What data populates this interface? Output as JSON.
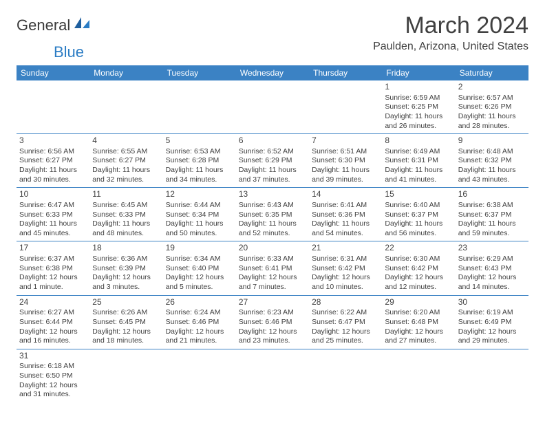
{
  "logo": {
    "general": "General",
    "blue": "Blue"
  },
  "title": "March 2024",
  "subtitle": "Paulden, Arizona, United States",
  "dow": [
    "Sunday",
    "Monday",
    "Tuesday",
    "Wednesday",
    "Thursday",
    "Friday",
    "Saturday"
  ],
  "colors": {
    "header_bg": "#3b82c4",
    "header_fg": "#ffffff",
    "rule": "#3b82c4",
    "text": "#404040",
    "logo_blue": "#2b7cc4"
  },
  "weeks": [
    [
      null,
      null,
      null,
      null,
      null,
      {
        "n": "1",
        "sr": "Sunrise: 6:59 AM",
        "ss": "Sunset: 6:25 PM",
        "d1": "Daylight: 11 hours",
        "d2": "and 26 minutes."
      },
      {
        "n": "2",
        "sr": "Sunrise: 6:57 AM",
        "ss": "Sunset: 6:26 PM",
        "d1": "Daylight: 11 hours",
        "d2": "and 28 minutes."
      }
    ],
    [
      {
        "n": "3",
        "sr": "Sunrise: 6:56 AM",
        "ss": "Sunset: 6:27 PM",
        "d1": "Daylight: 11 hours",
        "d2": "and 30 minutes."
      },
      {
        "n": "4",
        "sr": "Sunrise: 6:55 AM",
        "ss": "Sunset: 6:27 PM",
        "d1": "Daylight: 11 hours",
        "d2": "and 32 minutes."
      },
      {
        "n": "5",
        "sr": "Sunrise: 6:53 AM",
        "ss": "Sunset: 6:28 PM",
        "d1": "Daylight: 11 hours",
        "d2": "and 34 minutes."
      },
      {
        "n": "6",
        "sr": "Sunrise: 6:52 AM",
        "ss": "Sunset: 6:29 PM",
        "d1": "Daylight: 11 hours",
        "d2": "and 37 minutes."
      },
      {
        "n": "7",
        "sr": "Sunrise: 6:51 AM",
        "ss": "Sunset: 6:30 PM",
        "d1": "Daylight: 11 hours",
        "d2": "and 39 minutes."
      },
      {
        "n": "8",
        "sr": "Sunrise: 6:49 AM",
        "ss": "Sunset: 6:31 PM",
        "d1": "Daylight: 11 hours",
        "d2": "and 41 minutes."
      },
      {
        "n": "9",
        "sr": "Sunrise: 6:48 AM",
        "ss": "Sunset: 6:32 PM",
        "d1": "Daylight: 11 hours",
        "d2": "and 43 minutes."
      }
    ],
    [
      {
        "n": "10",
        "sr": "Sunrise: 6:47 AM",
        "ss": "Sunset: 6:33 PM",
        "d1": "Daylight: 11 hours",
        "d2": "and 45 minutes."
      },
      {
        "n": "11",
        "sr": "Sunrise: 6:45 AM",
        "ss": "Sunset: 6:33 PM",
        "d1": "Daylight: 11 hours",
        "d2": "and 48 minutes."
      },
      {
        "n": "12",
        "sr": "Sunrise: 6:44 AM",
        "ss": "Sunset: 6:34 PM",
        "d1": "Daylight: 11 hours",
        "d2": "and 50 minutes."
      },
      {
        "n": "13",
        "sr": "Sunrise: 6:43 AM",
        "ss": "Sunset: 6:35 PM",
        "d1": "Daylight: 11 hours",
        "d2": "and 52 minutes."
      },
      {
        "n": "14",
        "sr": "Sunrise: 6:41 AM",
        "ss": "Sunset: 6:36 PM",
        "d1": "Daylight: 11 hours",
        "d2": "and 54 minutes."
      },
      {
        "n": "15",
        "sr": "Sunrise: 6:40 AM",
        "ss": "Sunset: 6:37 PM",
        "d1": "Daylight: 11 hours",
        "d2": "and 56 minutes."
      },
      {
        "n": "16",
        "sr": "Sunrise: 6:38 AM",
        "ss": "Sunset: 6:37 PM",
        "d1": "Daylight: 11 hours",
        "d2": "and 59 minutes."
      }
    ],
    [
      {
        "n": "17",
        "sr": "Sunrise: 6:37 AM",
        "ss": "Sunset: 6:38 PM",
        "d1": "Daylight: 12 hours",
        "d2": "and 1 minute."
      },
      {
        "n": "18",
        "sr": "Sunrise: 6:36 AM",
        "ss": "Sunset: 6:39 PM",
        "d1": "Daylight: 12 hours",
        "d2": "and 3 minutes."
      },
      {
        "n": "19",
        "sr": "Sunrise: 6:34 AM",
        "ss": "Sunset: 6:40 PM",
        "d1": "Daylight: 12 hours",
        "d2": "and 5 minutes."
      },
      {
        "n": "20",
        "sr": "Sunrise: 6:33 AM",
        "ss": "Sunset: 6:41 PM",
        "d1": "Daylight: 12 hours",
        "d2": "and 7 minutes."
      },
      {
        "n": "21",
        "sr": "Sunrise: 6:31 AM",
        "ss": "Sunset: 6:42 PM",
        "d1": "Daylight: 12 hours",
        "d2": "and 10 minutes."
      },
      {
        "n": "22",
        "sr": "Sunrise: 6:30 AM",
        "ss": "Sunset: 6:42 PM",
        "d1": "Daylight: 12 hours",
        "d2": "and 12 minutes."
      },
      {
        "n": "23",
        "sr": "Sunrise: 6:29 AM",
        "ss": "Sunset: 6:43 PM",
        "d1": "Daylight: 12 hours",
        "d2": "and 14 minutes."
      }
    ],
    [
      {
        "n": "24",
        "sr": "Sunrise: 6:27 AM",
        "ss": "Sunset: 6:44 PM",
        "d1": "Daylight: 12 hours",
        "d2": "and 16 minutes."
      },
      {
        "n": "25",
        "sr": "Sunrise: 6:26 AM",
        "ss": "Sunset: 6:45 PM",
        "d1": "Daylight: 12 hours",
        "d2": "and 18 minutes."
      },
      {
        "n": "26",
        "sr": "Sunrise: 6:24 AM",
        "ss": "Sunset: 6:46 PM",
        "d1": "Daylight: 12 hours",
        "d2": "and 21 minutes."
      },
      {
        "n": "27",
        "sr": "Sunrise: 6:23 AM",
        "ss": "Sunset: 6:46 PM",
        "d1": "Daylight: 12 hours",
        "d2": "and 23 minutes."
      },
      {
        "n": "28",
        "sr": "Sunrise: 6:22 AM",
        "ss": "Sunset: 6:47 PM",
        "d1": "Daylight: 12 hours",
        "d2": "and 25 minutes."
      },
      {
        "n": "29",
        "sr": "Sunrise: 6:20 AM",
        "ss": "Sunset: 6:48 PM",
        "d1": "Daylight: 12 hours",
        "d2": "and 27 minutes."
      },
      {
        "n": "30",
        "sr": "Sunrise: 6:19 AM",
        "ss": "Sunset: 6:49 PM",
        "d1": "Daylight: 12 hours",
        "d2": "and 29 minutes."
      }
    ],
    [
      {
        "n": "31",
        "sr": "Sunrise: 6:18 AM",
        "ss": "Sunset: 6:50 PM",
        "d1": "Daylight: 12 hours",
        "d2": "and 31 minutes."
      },
      null,
      null,
      null,
      null,
      null,
      null
    ]
  ]
}
